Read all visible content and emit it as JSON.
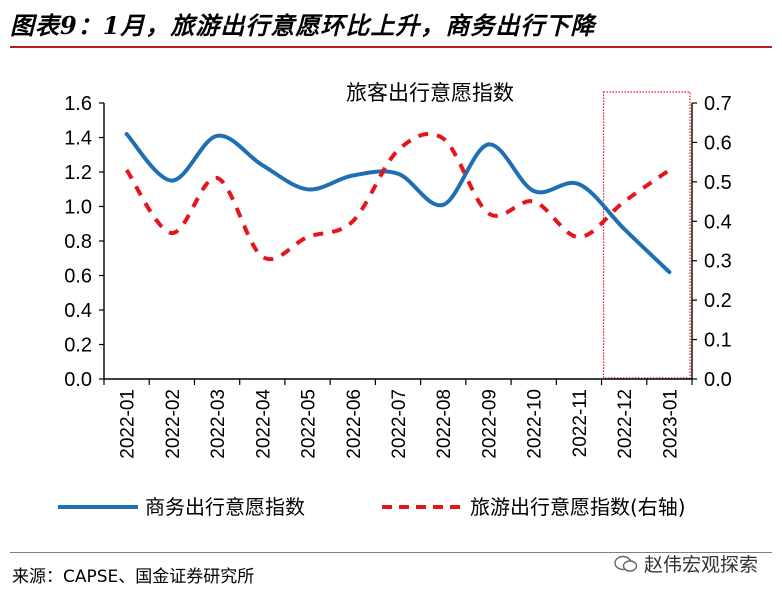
{
  "header": {
    "title": "图表9：1月，旅游出行意愿环比上升，商务出行下降"
  },
  "chart_data": {
    "type": "line",
    "title": "旅客出行意愿指数",
    "categories": [
      "2022-01",
      "2022-02",
      "2022-03",
      "2022-04",
      "2022-05",
      "2022-06",
      "2022-07",
      "2022-08",
      "2022-09",
      "2022-10",
      "2022-11",
      "2022-12",
      "2023-01"
    ],
    "series": [
      {
        "name": "商务出行意愿指数",
        "axis": "left",
        "color": "#1f6fb4",
        "style": "solid",
        "values": [
          1.42,
          1.15,
          1.41,
          1.24,
          1.1,
          1.18,
          1.19,
          1.01,
          1.36,
          1.09,
          1.13,
          0.87,
          0.62
        ]
      },
      {
        "name": "旅游出行意愿指数(右轴)",
        "axis": "right",
        "color": "#e8141b",
        "style": "dashed",
        "values": [
          0.53,
          0.37,
          0.51,
          0.31,
          0.36,
          0.4,
          0.58,
          0.61,
          0.42,
          0.45,
          0.36,
          0.45,
          0.53
        ]
      }
    ],
    "left_axis": {
      "ylim": [
        0,
        1.6
      ],
      "ticks": [
        "0.0",
        "0.2",
        "0.4",
        "0.6",
        "0.8",
        "1.0",
        "1.2",
        "1.4",
        "1.6"
      ]
    },
    "right_axis": {
      "ylim": [
        0,
        0.7
      ],
      "ticks": [
        "0.0",
        "0.1",
        "0.2",
        "0.3",
        "0.4",
        "0.5",
        "0.6",
        "0.7"
      ]
    },
    "grid": false,
    "legend_position": "bottom",
    "highlight": {
      "from": "2022-12",
      "to": "2023-01",
      "color": "#e8141b",
      "style": "dotted-box"
    }
  },
  "footer": {
    "source": "来源：CAPSE、国金证券研究所",
    "watermark": "赵伟宏观探索"
  }
}
